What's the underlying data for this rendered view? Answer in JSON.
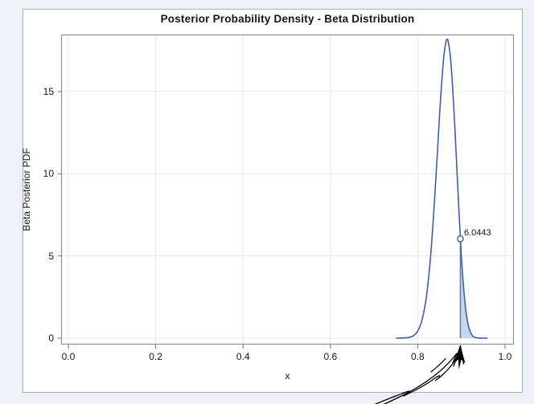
{
  "colors": {
    "page_background": "#edf0f6",
    "chart_background": "#ffffff",
    "frame_border": "#abaeb3",
    "plot_border": "#8b9097",
    "gridline": "#e7e8ea",
    "tick": "#6f7377",
    "text": "#161616",
    "annotation_ink": "#000000"
  },
  "chart_data": {
    "type": "line",
    "title": "Posterior Probability Density - Beta Distribution",
    "xlabel": "x",
    "ylabel": "Beta Posterior PDF",
    "xlim": [
      -0.017,
      1.02
    ],
    "ylim": [
      -0.4,
      18.5
    ],
    "grid": true,
    "x_tick_labels": [
      "0.0",
      "0.2",
      "0.4",
      "0.6",
      "0.8",
      "1.0"
    ],
    "x_tick_values": [
      0,
      0.2,
      0.4,
      0.6,
      0.8,
      1.0
    ],
    "y_tick_labels": [
      "0",
      "5",
      "10",
      "15"
    ],
    "y_tick_values": [
      0,
      5,
      10,
      15
    ],
    "series": [
      {
        "name": "Beta posterior PDF curve",
        "color": "#3b61a9",
        "points": [
          [
            0.75,
            0.001
          ],
          [
            0.76,
            0.003
          ],
          [
            0.77,
            0.013
          ],
          [
            0.78,
            0.047
          ],
          [
            0.79,
            0.149
          ],
          [
            0.8,
            0.431
          ],
          [
            0.81,
            1.113
          ],
          [
            0.82,
            2.552
          ],
          [
            0.83,
            5.138
          ],
          [
            0.84,
            9.005
          ],
          [
            0.85,
            13.54
          ],
          [
            0.855,
            15.6
          ],
          [
            0.86,
            17.2
          ],
          [
            0.865,
            18.06
          ],
          [
            0.8674,
            18.17
          ],
          [
            0.87,
            18.04
          ],
          [
            0.875,
            17.08
          ],
          [
            0.88,
            15.27
          ],
          [
            0.885,
            12.83
          ],
          [
            0.89,
            10.09
          ],
          [
            0.8977,
            6.0443
          ],
          [
            0.9,
            4.97
          ],
          [
            0.905,
            3.1
          ],
          [
            0.91,
            1.754
          ],
          [
            0.915,
            0.895
          ],
          [
            0.92,
            0.406
          ],
          [
            0.925,
            0.161
          ],
          [
            0.93,
            0.056
          ],
          [
            0.94,
            0.005
          ],
          [
            0.95,
            0.001
          ],
          [
            0.96,
            0
          ]
        ]
      }
    ],
    "marker": {
      "x": 0.8977,
      "y": 6.0443,
      "label": "6.0443"
    },
    "shaded_region": {
      "from_x": 0.8977,
      "to_x": 0.96,
      "fill_color": "#c8d6ec",
      "edge_color": "#64789c",
      "description": "upper-tail area under posterior density"
    },
    "annotation": {
      "type": "hand-drawn arrow",
      "points_to_x": 0.8977
    }
  }
}
